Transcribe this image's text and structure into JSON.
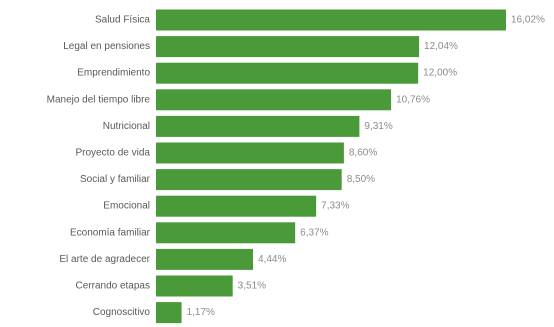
{
  "chart_data": {
    "type": "bar",
    "orientation": "horizontal",
    "categories": [
      "Salud Física",
      "Legal en pensiones",
      "Emprendimiento",
      "Manejo del tiempo libre",
      "Nutricional",
      "Proyecto de vida",
      "Social y familiar",
      "Emocional",
      "Economía familiar",
      "El arte de agradecer",
      "Cerrando etapas",
      "Cognoscitivo"
    ],
    "values": [
      16.02,
      12.04,
      12.0,
      10.76,
      9.31,
      8.6,
      8.5,
      7.33,
      6.37,
      4.44,
      3.51,
      1.17
    ],
    "value_labels": [
      "16,02%",
      "12,04%",
      "12,00%",
      "10,76%",
      "9,31%",
      "8,60%",
      "8,50%",
      "7,33%",
      "6,37%",
      "4,44%",
      "3,51%",
      "1,17%"
    ],
    "colors": {
      "bar": "#4b9a3a"
    },
    "xlim": [
      0,
      16.02
    ],
    "grid": false,
    "legend": "none"
  }
}
